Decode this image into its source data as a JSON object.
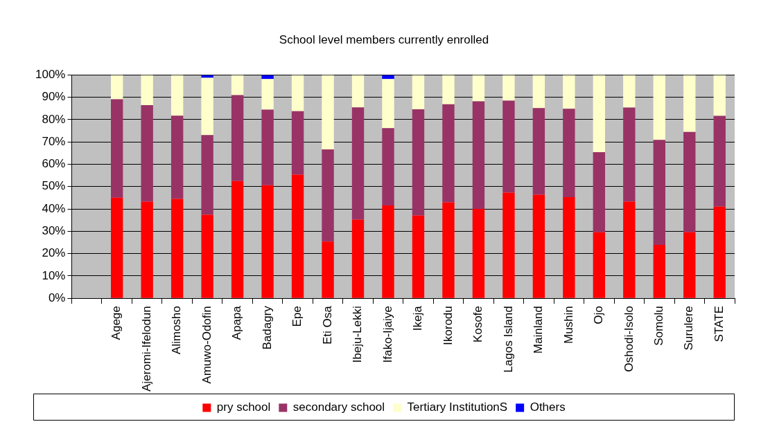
{
  "chart_data": {
    "type": "bar",
    "title": "School level members currently enrolled",
    "stacked": true,
    "grid": "y",
    "legend": "bottom",
    "categories": [
      null,
      "Agege",
      "Ajeromi-Ifelodun",
      "Alimosho",
      "Amuwo-Odofin",
      "Apapa",
      "Badagry",
      "Epe",
      "Eti Osa",
      "Ibeju-Lekki",
      "Ifako-Ijaiye",
      "Ikeja",
      "Ikorodu",
      "Kosofe",
      "Lagos Island",
      "Mainland",
      "Mushin",
      "Ojo",
      "Oshodi-Isolo",
      "Somolu",
      "Surulere",
      "STATE"
    ],
    "ylim": [
      0,
      100
    ],
    "yticks": [
      {
        "value": 0,
        "label": "0%"
      },
      {
        "value": 10,
        "label": "10%"
      },
      {
        "value": 20,
        "label": "20%"
      },
      {
        "value": 30,
        "label": "30%"
      },
      {
        "value": 40,
        "label": "40%"
      },
      {
        "value": 50,
        "label": "50%"
      },
      {
        "value": 60,
        "label": "60%"
      },
      {
        "value": 70,
        "label": "70%"
      },
      {
        "value": 80,
        "label": "80%"
      },
      {
        "value": 90,
        "label": "90%"
      },
      {
        "value": 100,
        "label": "100%"
      }
    ],
    "series": [
      {
        "name": "pry school",
        "color": "#ff0000",
        "values": [
          null,
          45.1,
          43.3,
          44.5,
          37.4,
          52.5,
          50.6,
          55.4,
          25.4,
          35.2,
          41.6,
          37.1,
          43,
          40,
          47.3,
          46.4,
          45.3,
          29.6,
          43.3,
          23.9,
          29.6,
          41
        ]
      },
      {
        "name": "secondary school",
        "color": "#993366",
        "values": [
          null,
          44,
          43.2,
          37.3,
          35.7,
          38.5,
          33.9,
          28.4,
          41.3,
          50.3,
          34.6,
          47.5,
          43.9,
          48.2,
          41.2,
          38.8,
          39.6,
          35.8,
          42.1,
          47,
          44.9,
          40.7
        ]
      },
      {
        "name": "Tertiary InstitutionS",
        "color": "#ffffcc",
        "values": [
          null,
          10.9,
          13.5,
          18.2,
          25.6,
          9,
          13.7,
          16.2,
          33.3,
          14.5,
          22,
          15.4,
          13.1,
          11.8,
          11.5,
          14.8,
          15.1,
          34.6,
          14.6,
          29.1,
          25.5,
          18.3
        ]
      },
      {
        "name": "Others",
        "color": "#0000ff",
        "values": [
          null,
          0,
          0,
          0,
          1.3,
          0,
          1.8,
          0,
          0,
          0,
          1.8,
          0,
          0,
          0,
          0,
          0,
          0,
          0,
          0,
          0,
          0,
          0
        ]
      }
    ]
  }
}
